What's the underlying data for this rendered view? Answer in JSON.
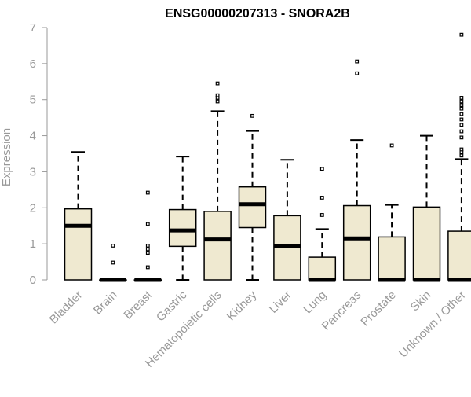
{
  "chart_data": {
    "type": "boxplot",
    "title": "ENSG00000207313 - SNORA2B",
    "xlabel": "",
    "ylabel": "Expression",
    "ylim": [
      0,
      7
    ],
    "yticks": [
      0,
      1,
      2,
      3,
      4,
      5,
      6,
      7
    ],
    "grid": false,
    "legend": "none",
    "colors": {
      "box_fill": "#efe9d0",
      "stroke": "#000000",
      "axis_text": "#999999",
      "outlier": "#000000"
    },
    "categories": [
      "Bladder",
      "Brain",
      "Breast",
      "Gastric",
      "Hematopoietic cells",
      "Kidney",
      "Liver",
      "Lung",
      "Pancreas",
      "Prostate",
      "Skin",
      "Unknown / Other"
    ],
    "boxes": [
      {
        "min": 0,
        "q1": 0,
        "median": 1.5,
        "q3": 1.97,
        "max": 3.55,
        "outliers": []
      },
      {
        "min": 0,
        "q1": 0,
        "median": 0,
        "q3": 0,
        "max": 0,
        "outliers": [
          0.48,
          0.95
        ]
      },
      {
        "min": 0,
        "q1": 0,
        "median": 0,
        "q3": 0,
        "max": 0,
        "outliers": [
          0.35,
          0.75,
          0.85,
          0.95,
          1.55,
          2.42
        ]
      },
      {
        "min": 0,
        "q1": 0.93,
        "median": 1.37,
        "q3": 1.95,
        "max": 3.42,
        "outliers": []
      },
      {
        "min": 0,
        "q1": 0,
        "median": 1.12,
        "q3": 1.9,
        "max": 4.68,
        "outliers": [
          4.95,
          5.05,
          5.12,
          5.45
        ]
      },
      {
        "min": 0,
        "q1": 1.45,
        "median": 2.1,
        "q3": 2.58,
        "max": 4.13,
        "outliers": [
          4.55
        ]
      },
      {
        "min": 0,
        "q1": 0,
        "median": 0.93,
        "q3": 1.78,
        "max": 3.33,
        "outliers": []
      },
      {
        "min": 0,
        "q1": 0,
        "median": 0,
        "q3": 0.63,
        "max": 1.41,
        "outliers": [
          1.8,
          2.28,
          3.08
        ]
      },
      {
        "min": 0,
        "q1": 0,
        "median": 1.15,
        "q3": 2.06,
        "max": 3.88,
        "outliers": [
          5.73,
          6.06
        ]
      },
      {
        "min": 0,
        "q1": 0,
        "median": 0,
        "q3": 1.19,
        "max": 2.08,
        "outliers": [
          3.73
        ]
      },
      {
        "min": 0,
        "q1": 0,
        "median": 0,
        "q3": 2.02,
        "max": 4.0,
        "outliers": []
      },
      {
        "min": 0,
        "q1": 0,
        "median": 0,
        "q3": 1.35,
        "max": 3.35,
        "outliers": [
          3.45,
          3.55,
          3.62,
          3.95,
          4.12,
          4.3,
          4.45,
          4.6,
          4.75,
          4.85,
          4.95,
          5.05,
          6.8
        ]
      }
    ]
  }
}
